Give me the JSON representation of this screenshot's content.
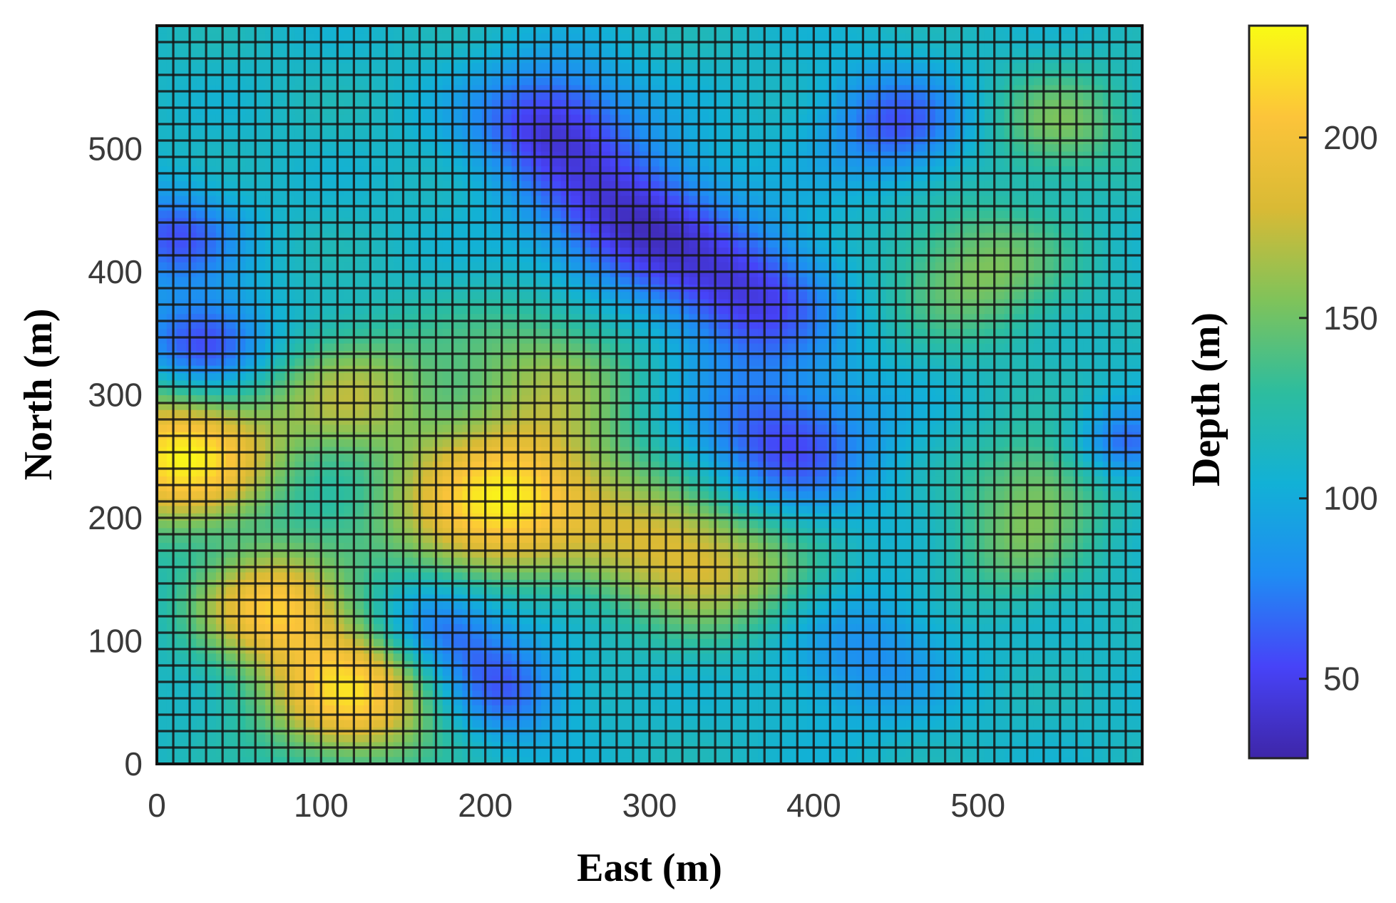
{
  "chart_data": {
    "type": "heatmap",
    "title": "",
    "xlabel": "East (m)",
    "ylabel": "North (m)",
    "xlim": [
      0,
      600
    ],
    "ylim": [
      0,
      600
    ],
    "x_ticks": [
      0,
      100,
      200,
      300,
      400,
      500
    ],
    "y_ticks": [
      0,
      100,
      200,
      300,
      400,
      500
    ],
    "grid": true,
    "colorbar": {
      "label": "Depth (m)",
      "range": [
        28,
        231
      ],
      "ticks": [
        50,
        100,
        150,
        200
      ],
      "colormap": [
        "#3e26a8",
        "#4743f8",
        "#1f8cf3",
        "#12b1d6",
        "#2dbd9e",
        "#7fc35a",
        "#d9ba35",
        "#fcc43a",
        "#f9fb14"
      ]
    },
    "grid_resolution": [
      60,
      45
    ],
    "features": [
      {
        "x": 120,
        "y": 60,
        "depth": 215,
        "radius": 55
      },
      {
        "x": 70,
        "y": 130,
        "depth": 200,
        "radius": 45
      },
      {
        "x": 15,
        "y": 250,
        "depth": 225,
        "radius": 55
      },
      {
        "x": 190,
        "y": 200,
        "depth": 185,
        "radius": 55
      },
      {
        "x": 230,
        "y": 230,
        "depth": 175,
        "radius": 55
      },
      {
        "x": 310,
        "y": 180,
        "depth": 175,
        "radius": 55
      },
      {
        "x": 360,
        "y": 150,
        "depth": 150,
        "radius": 50
      },
      {
        "x": 120,
        "y": 300,
        "depth": 165,
        "radius": 55
      },
      {
        "x": 240,
        "y": 320,
        "depth": 155,
        "radius": 60
      },
      {
        "x": 500,
        "y": 400,
        "depth": 155,
        "radius": 55
      },
      {
        "x": 540,
        "y": 230,
        "depth": 150,
        "radius": 45
      },
      {
        "x": 520,
        "y": 170,
        "depth": 140,
        "radius": 45
      },
      {
        "x": 550,
        "y": 520,
        "depth": 150,
        "radius": 45
      },
      {
        "x": 240,
        "y": 520,
        "depth": 45,
        "radius": 50
      },
      {
        "x": 290,
        "y": 440,
        "depth": 40,
        "radius": 55
      },
      {
        "x": 360,
        "y": 380,
        "depth": 50,
        "radius": 55
      },
      {
        "x": 380,
        "y": 260,
        "depth": 55,
        "radius": 60
      },
      {
        "x": 30,
        "y": 340,
        "depth": 45,
        "radius": 40
      },
      {
        "x": 170,
        "y": 110,
        "depth": 50,
        "radius": 40
      },
      {
        "x": 210,
        "y": 60,
        "depth": 60,
        "radius": 40
      },
      {
        "x": 430,
        "y": 90,
        "depth": 80,
        "radius": 55
      },
      {
        "x": 450,
        "y": 520,
        "depth": 60,
        "radius": 45
      },
      {
        "x": 590,
        "y": 260,
        "depth": 60,
        "radius": 30
      },
      {
        "x": 10,
        "y": 430,
        "depth": 60,
        "radius": 40
      }
    ],
    "base_depth": 112
  }
}
